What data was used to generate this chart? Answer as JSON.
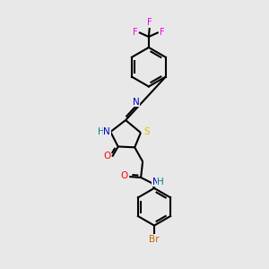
{
  "bg": "#e8e8e8",
  "black": "#000000",
  "N_color": "#0000cc",
  "O_color": "#ff0000",
  "S_color": "#cccc00",
  "F_color": "#ee00ee",
  "Br_color": "#cc6600",
  "H_color": "#008080",
  "lw": 1.5,
  "fs": 7.0,
  "xlim": [
    0,
    10
  ],
  "ylim": [
    0,
    15
  ]
}
